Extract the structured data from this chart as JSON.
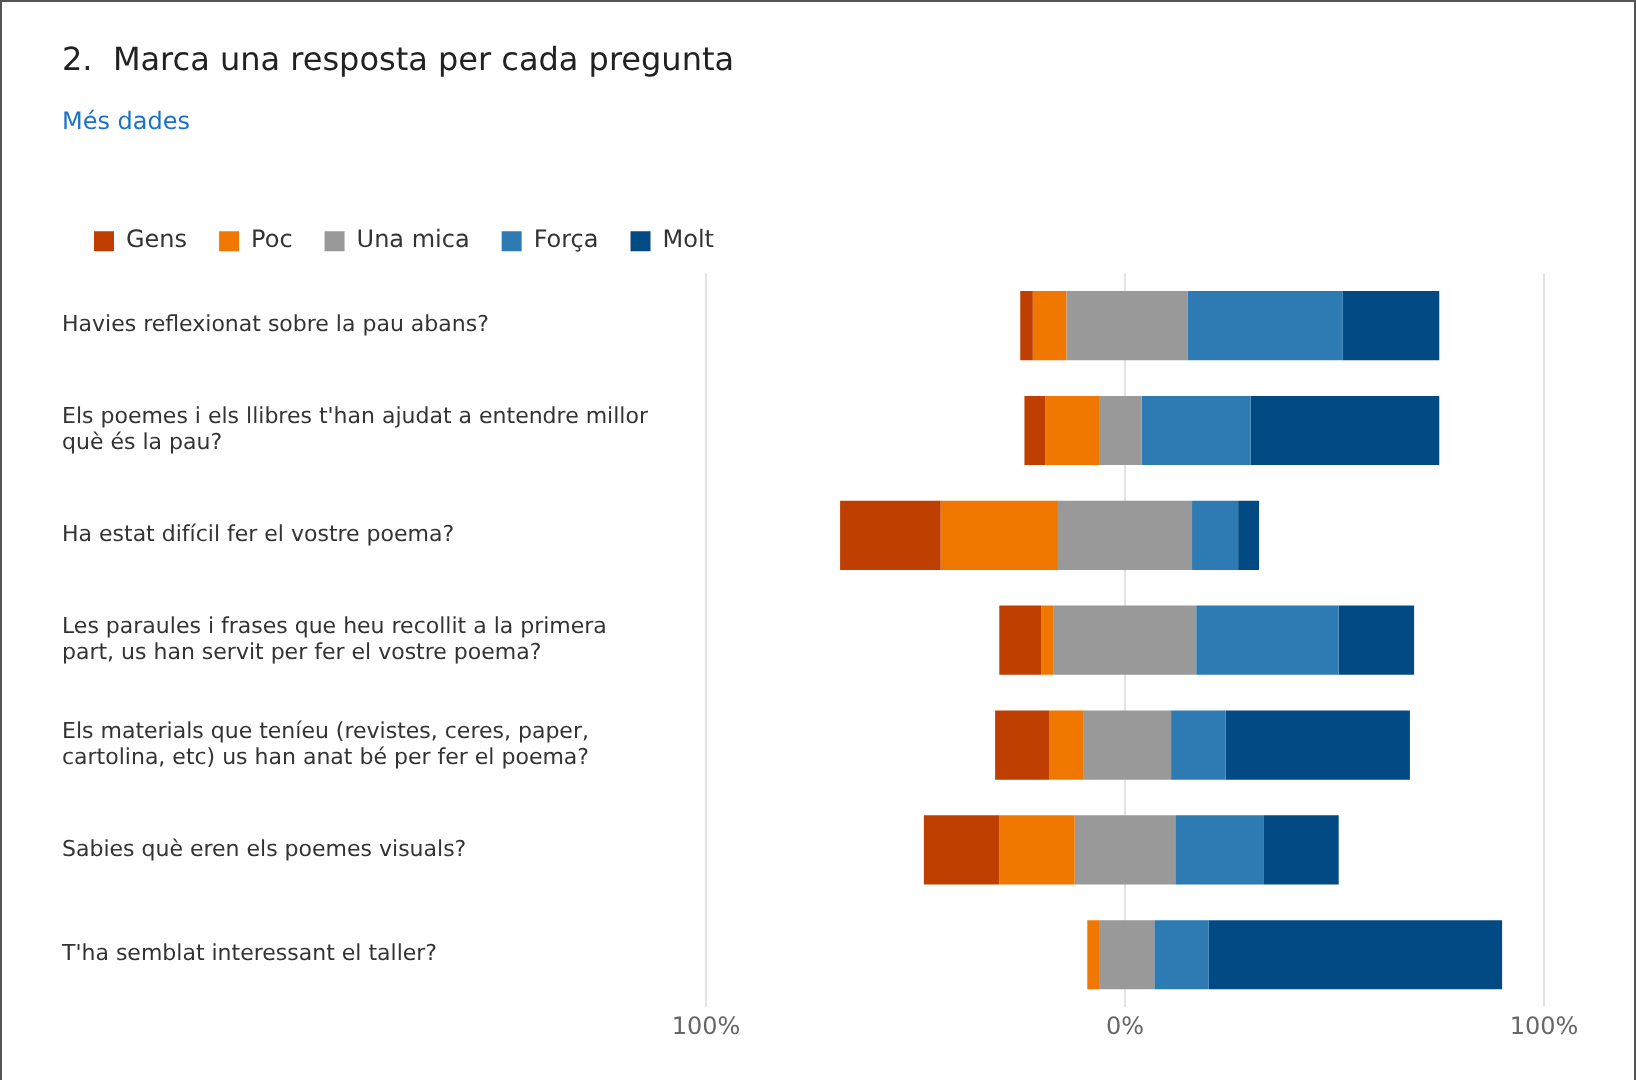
{
  "chart_data": {
    "type": "bar",
    "title": "2.  Marca una resposta per cada pregunta",
    "subtitle": "Més dades",
    "orientation": "horizontal",
    "categories": [
      "Havies reflexionat sobre la pau abans?",
      "Els poemes i els llibres t'han ajudat a entendre millor què és la pau?",
      "Ha estat difícil fer el vostre poema?",
      "Les paraules i frases que heu recollit a la primera part, us han servit per fer el vostre poema?",
      "Els materials que teníeu (revistes, ceres, paper, cartolina, etc) us han anat bé per fer el poema?",
      "Sabies què eren els poemes visuals?",
      "T'ha semblat interessant el taller?"
    ],
    "series": [
      {
        "name": "Gens",
        "color": "#bf3f00",
        "base": [
          -25,
          -24,
          -68,
          -30,
          -31,
          -48,
          null
        ],
        "values": [
          3,
          5,
          24,
          10,
          13,
          18,
          null
        ]
      },
      {
        "name": "Poc",
        "color": "#f07800",
        "base": [
          -22,
          -19,
          -44,
          -20,
          -18,
          -30,
          -9
        ],
        "values": [
          8,
          13,
          28,
          3,
          8,
          18,
          3
        ]
      },
      {
        "name": "Una mica",
        "color": "#999999",
        "base": [
          -14,
          -6,
          -16,
          -17,
          -10,
          -12,
          -6
        ],
        "values": [
          29,
          10,
          32,
          34,
          21,
          24,
          13
        ]
      },
      {
        "name": "Força",
        "color": "#2e7bb4",
        "base": [
          15,
          4,
          16,
          17,
          11,
          12,
          7
        ],
        "values": [
          37,
          26,
          11,
          34,
          13,
          21,
          13
        ]
      },
      {
        "name": "Molt",
        "color": "#024a84",
        "base": [
          52,
          30,
          27,
          51,
          24,
          33,
          20
        ],
        "values": [
          23,
          45,
          5,
          18,
          44,
          18,
          70
        ]
      }
    ],
    "xlim": [
      -100,
      100
    ],
    "xticks": [
      {
        "value": -100,
        "label": "100%"
      },
      {
        "value": 0,
        "label": "0%"
      },
      {
        "value": 100,
        "label": "100%"
      }
    ],
    "grid": "x",
    "legend": "top left"
  }
}
